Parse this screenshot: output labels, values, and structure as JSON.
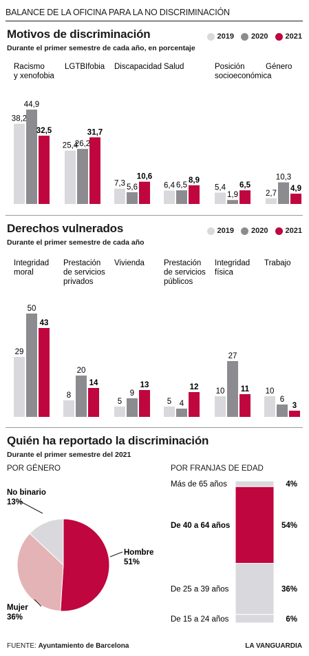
{
  "header": {
    "title": "BALANCE DE LA OFICINA PARA LA NO DISCRIMINACIÓN"
  },
  "colors": {
    "y2019": "#d9d9dd",
    "y2020": "#8c8c90",
    "y2021": "#c0063f",
    "mujer": "#e4b3b6",
    "nobinario": "#d9d9dd"
  },
  "legend": [
    "2019",
    "2020",
    "2021"
  ],
  "sections": {
    "motivos": {
      "title": "Motivos de discriminación",
      "subtitle": "Durante el primer semestre de cada año, en porcentaje"
    },
    "derechos": {
      "title": "Derechos vulnerados",
      "subtitle": "Durante el primer semestre de cada año"
    },
    "quien": {
      "title": "Quién ha reportado la discriminación",
      "subtitle": "Durante el primer semestre del 2021",
      "genero_label": "POR GÉNERO",
      "edad_label": "POR FRANJAS DE EDAD"
    }
  },
  "chart_data": [
    {
      "type": "bar",
      "title": "Motivos de discriminación",
      "subtitle": "Durante el primer semestre de cada año, en porcentaje",
      "categories": [
        [
          "Racismo",
          "y xenofobia"
        ],
        [
          "LGTBIfobia"
        ],
        [
          "Discapacidad"
        ],
        [
          "Salud"
        ],
        [
          "Posición",
          "socioeconómica"
        ],
        [
          "Género"
        ]
      ],
      "value_labels": [
        [
          "38,2",
          "44,9",
          "32,5"
        ],
        [
          "25,4",
          "26,2",
          "31,7"
        ],
        [
          "7,3",
          "5,6",
          "10,6"
        ],
        [
          "6,4",
          "6,5",
          "8,9"
        ],
        [
          "5,4",
          "1,9",
          "6,5"
        ],
        [
          "2,7",
          "10,3",
          "4,9"
        ]
      ],
      "series": [
        {
          "name": "2019",
          "values": [
            38.2,
            25.4,
            7.3,
            6.4,
            5.4,
            2.7
          ]
        },
        {
          "name": "2020",
          "values": [
            44.9,
            26.2,
            5.6,
            6.5,
            1.9,
            10.3
          ]
        },
        {
          "name": "2021",
          "values": [
            32.5,
            31.7,
            10.6,
            8.9,
            6.5,
            4.9
          ]
        }
      ]
    },
    {
      "type": "bar",
      "title": "Derechos vulnerados",
      "subtitle": "Durante el primer semestre de cada año",
      "categories": [
        [
          "Integridad",
          "moral"
        ],
        [
          "Prestación",
          "de servicios",
          "privados"
        ],
        [
          "Vivienda"
        ],
        [
          "Prestación",
          "de servicios",
          "públicos"
        ],
        [
          "Integridad",
          "física"
        ],
        [
          "Trabajo"
        ]
      ],
      "value_labels": [
        [
          "29",
          "50",
          "43"
        ],
        [
          "8",
          "20",
          "14"
        ],
        [
          "5",
          "9",
          "13"
        ],
        [
          "5",
          "4",
          "12"
        ],
        [
          "10",
          "27",
          "11"
        ],
        [
          "10",
          "6",
          "3"
        ]
      ],
      "series": [
        {
          "name": "2019",
          "values": [
            29,
            8,
            5,
            5,
            10,
            10
          ]
        },
        {
          "name": "2020",
          "values": [
            50,
            20,
            9,
            4,
            27,
            6
          ]
        },
        {
          "name": "2021",
          "values": [
            43,
            14,
            13,
            12,
            11,
            3
          ]
        }
      ]
    },
    {
      "type": "pie",
      "title": "POR GÉNERO",
      "slices": [
        {
          "label": "Hombre",
          "value": 51,
          "pct": "51%"
        },
        {
          "label": "Mujer",
          "value": 36,
          "pct": "36%"
        },
        {
          "label": "No binario",
          "value": 13,
          "pct": "13%"
        }
      ]
    },
    {
      "type": "bar",
      "title": "POR FRANJAS DE EDAD",
      "stacked": true,
      "segments": [
        {
          "label": "Más de 65 años",
          "value": 4,
          "pct": "4%"
        },
        {
          "label": "De 40 a 64 años",
          "value": 54,
          "pct": "54%",
          "highlight": true
        },
        {
          "label": "De 25 a 39 años",
          "value": 36,
          "pct": "36%"
        },
        {
          "label": "De 15 a 24 años",
          "value": 6,
          "pct": "6%"
        }
      ]
    }
  ],
  "footer": {
    "source_label": "FUENTE:",
    "source": "Ayuntamiento de Barcelona",
    "brand": "LA VANGUARDIA"
  }
}
